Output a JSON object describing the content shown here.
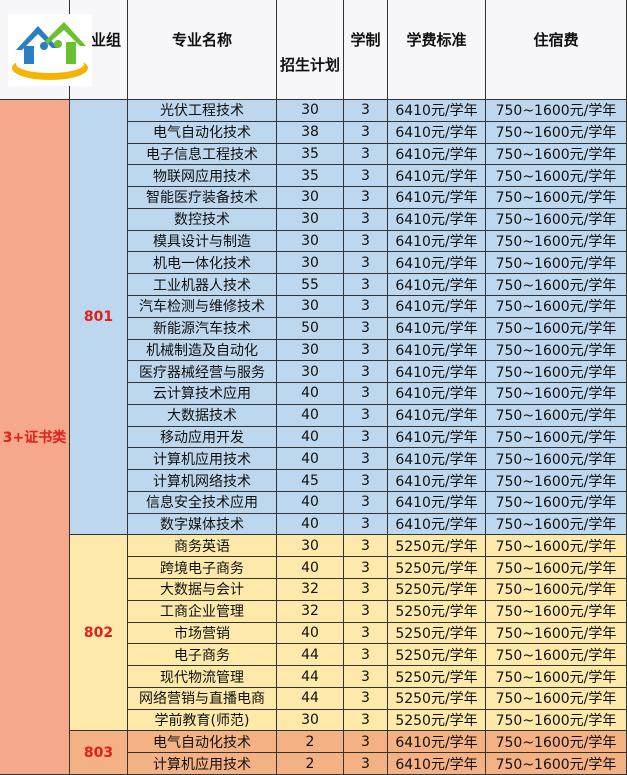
{
  "header": [
    "专业组",
    "专业名称",
    "招生计划",
    "学制",
    "学费标准",
    "住宿费"
  ],
  "category": "3+证书类",
  "groups": [
    {
      "code": "801",
      "rows": [
        [
          "光伏工程技术",
          30,
          3,
          "6410元/学年",
          "750~1600元/学年"
        ],
        [
          "电气自动化技术",
          38,
          3,
          "6410元/学年",
          "750~1600元/学年"
        ],
        [
          "电子信息工程技术",
          35,
          3,
          "6410元/学年",
          "750~1600元/学年"
        ],
        [
          "物联网应用技术",
          35,
          3,
          "6410元/学年",
          "750~1600元/学年"
        ],
        [
          "智能医疗装备技术",
          30,
          3,
          "6410元/学年",
          "750~1600元/学年"
        ],
        [
          "数控技术",
          30,
          3,
          "6410元/学年",
          "750~1600元/学年"
        ],
        [
          "模具设计与制造",
          30,
          3,
          "6410元/学年",
          "750~1600元/学年"
        ],
        [
          "机电一体化技术",
          30,
          3,
          "6410元/学年",
          "750~1600元/学年"
        ],
        [
          "工业机器人技术",
          55,
          3,
          "6410元/学年",
          "750~1600元/学年"
        ],
        [
          "汽车检测与维修技术",
          30,
          3,
          "6410元/学年",
          "750~1600元/学年"
        ],
        [
          "新能源汽车技术",
          50,
          3,
          "6410元/学年",
          "750~1600元/学年"
        ],
        [
          "机械制造及自动化",
          30,
          3,
          "6410元/学年",
          "750~1600元/学年"
        ],
        [
          "医疗器械经营与服务",
          30,
          3,
          "6410元/学年",
          "750~1600元/学年"
        ],
        [
          "云计算技术应用",
          40,
          3,
          "6410元/学年",
          "750~1600元/学年"
        ],
        [
          "大数据技术",
          40,
          3,
          "6410元/学年",
          "750~1600元/学年"
        ],
        [
          "移动应用开发",
          40,
          3,
          "6410元/学年",
          "750~1600元/学年"
        ],
        [
          "计算机应用技术",
          40,
          3,
          "6410元/学年",
          "750~1600元/学年"
        ],
        [
          "计算机网络技术",
          45,
          3,
          "6410元/学年",
          "750~1600元/学年"
        ],
        [
          "信息安全技术应用",
          40,
          3,
          "6410元/学年",
          "750~1600元/学年"
        ],
        [
          "数字媒体技术",
          40,
          3,
          "6410元/学年",
          "750~1600元/学年"
        ]
      ]
    },
    {
      "code": "802",
      "rows": [
        [
          "商务英语",
          30,
          3,
          "5250元/学年",
          "750~1600元/学年"
        ],
        [
          "跨境电子商务",
          40,
          3,
          "5250元/学年",
          "750~1600元/学年"
        ],
        [
          "大数据与会计",
          32,
          3,
          "5250元/学年",
          "750~1600元/学年"
        ],
        [
          "工商企业管理",
          32,
          3,
          "5250元/学年",
          "750~1600元/学年"
        ],
        [
          "市场营销",
          40,
          3,
          "5250元/学年",
          "750~1600元/学年"
        ],
        [
          "电子商务",
          44,
          3,
          "5250元/学年",
          "750~1600元/学年"
        ],
        [
          "现代物流管理",
          44,
          3,
          "5250元/学年",
          "750~1600元/学年"
        ],
        [
          "网络营销与直播电商",
          44,
          3,
          "5250元/学年",
          "750~1600元/学年"
        ],
        [
          "学前教育(师范)",
          30,
          3,
          "5250元/学年",
          "750~1600元/学年"
        ]
      ]
    },
    {
      "code": "803",
      "rows": [
        [
          "电气自动化技术",
          2,
          3,
          "6410元/学年",
          "750~1600元/学年"
        ],
        [
          "计算机应用技术",
          2,
          3,
          "6410元/学年",
          "750~1600元/学年"
        ]
      ]
    }
  ]
}
